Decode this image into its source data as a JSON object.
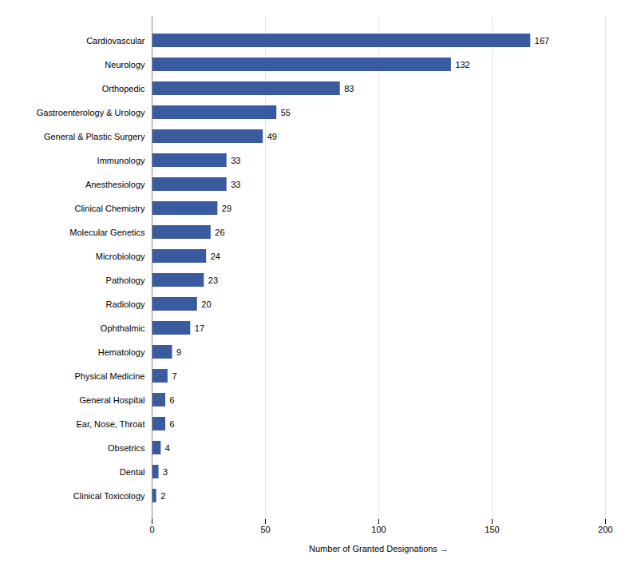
{
  "chart_data": {
    "type": "bar",
    "orientation": "horizontal",
    "categories": [
      "Clinical Toxicology",
      "Dental",
      "Obsetrics",
      "Ear, Nose, Throat",
      "General Hospital",
      "Physical Medicine",
      "Hematology",
      "Ophthalmic",
      "Radiology",
      "Pathology",
      "Microbiology",
      "Molecular Genetics",
      "Clinical Chemistry",
      "Anesthesiology",
      "Immunology",
      "General & Plastic Surgery",
      "Gastroenterology & Urology",
      "Orthopedic",
      "Neurology",
      "Cardiovascular"
    ],
    "values": [
      2,
      3,
      4,
      6,
      6,
      7,
      9,
      17,
      20,
      23,
      24,
      26,
      29,
      33,
      33,
      49,
      55,
      83,
      132,
      167
    ],
    "color": "#3A5BA0",
    "xlabel": "Number of Granted Designations",
    "xlim": [
      0,
      200
    ],
    "xticks": [
      0,
      50,
      100,
      150,
      200
    ],
    "grid": true,
    "data_labels": true
  }
}
